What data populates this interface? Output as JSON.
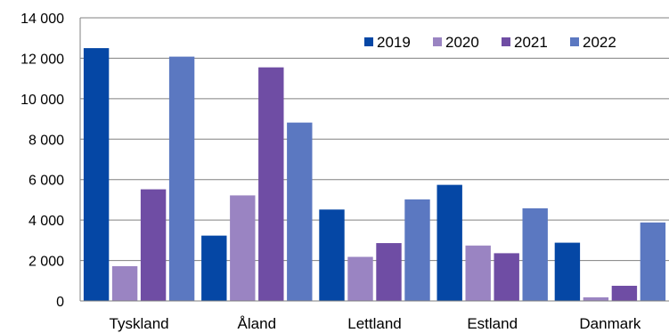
{
  "chart_data": {
    "type": "bar",
    "title": "",
    "xlabel": "",
    "ylabel": "",
    "categories": [
      "Tyskland",
      "Åland",
      "Lettland",
      "Estland",
      "Danmark"
    ],
    "ylim": [
      0,
      14000
    ],
    "yticks": [
      0,
      2000,
      4000,
      6000,
      8000,
      10000,
      12000,
      14000
    ],
    "ytick_labels": [
      "0",
      "2 000",
      "4 000",
      "6 000",
      "8 000",
      "10 000",
      "12 000",
      "14 000"
    ],
    "grid": true,
    "legend_position": "top-right",
    "series": [
      {
        "name": "2019",
        "color": "#0547A5",
        "values": [
          12500,
          3230,
          4520,
          5740,
          2880
        ]
      },
      {
        "name": "2020",
        "color": "#9A84C2",
        "values": [
          1720,
          5220,
          2180,
          2740,
          180
        ]
      },
      {
        "name": "2021",
        "color": "#6F4DA4",
        "values": [
          5520,
          11550,
          2860,
          2360,
          750
        ]
      },
      {
        "name": "2022",
        "color": "#5B78C1",
        "values": [
          12080,
          8820,
          5020,
          4580,
          3880
        ]
      }
    ]
  }
}
